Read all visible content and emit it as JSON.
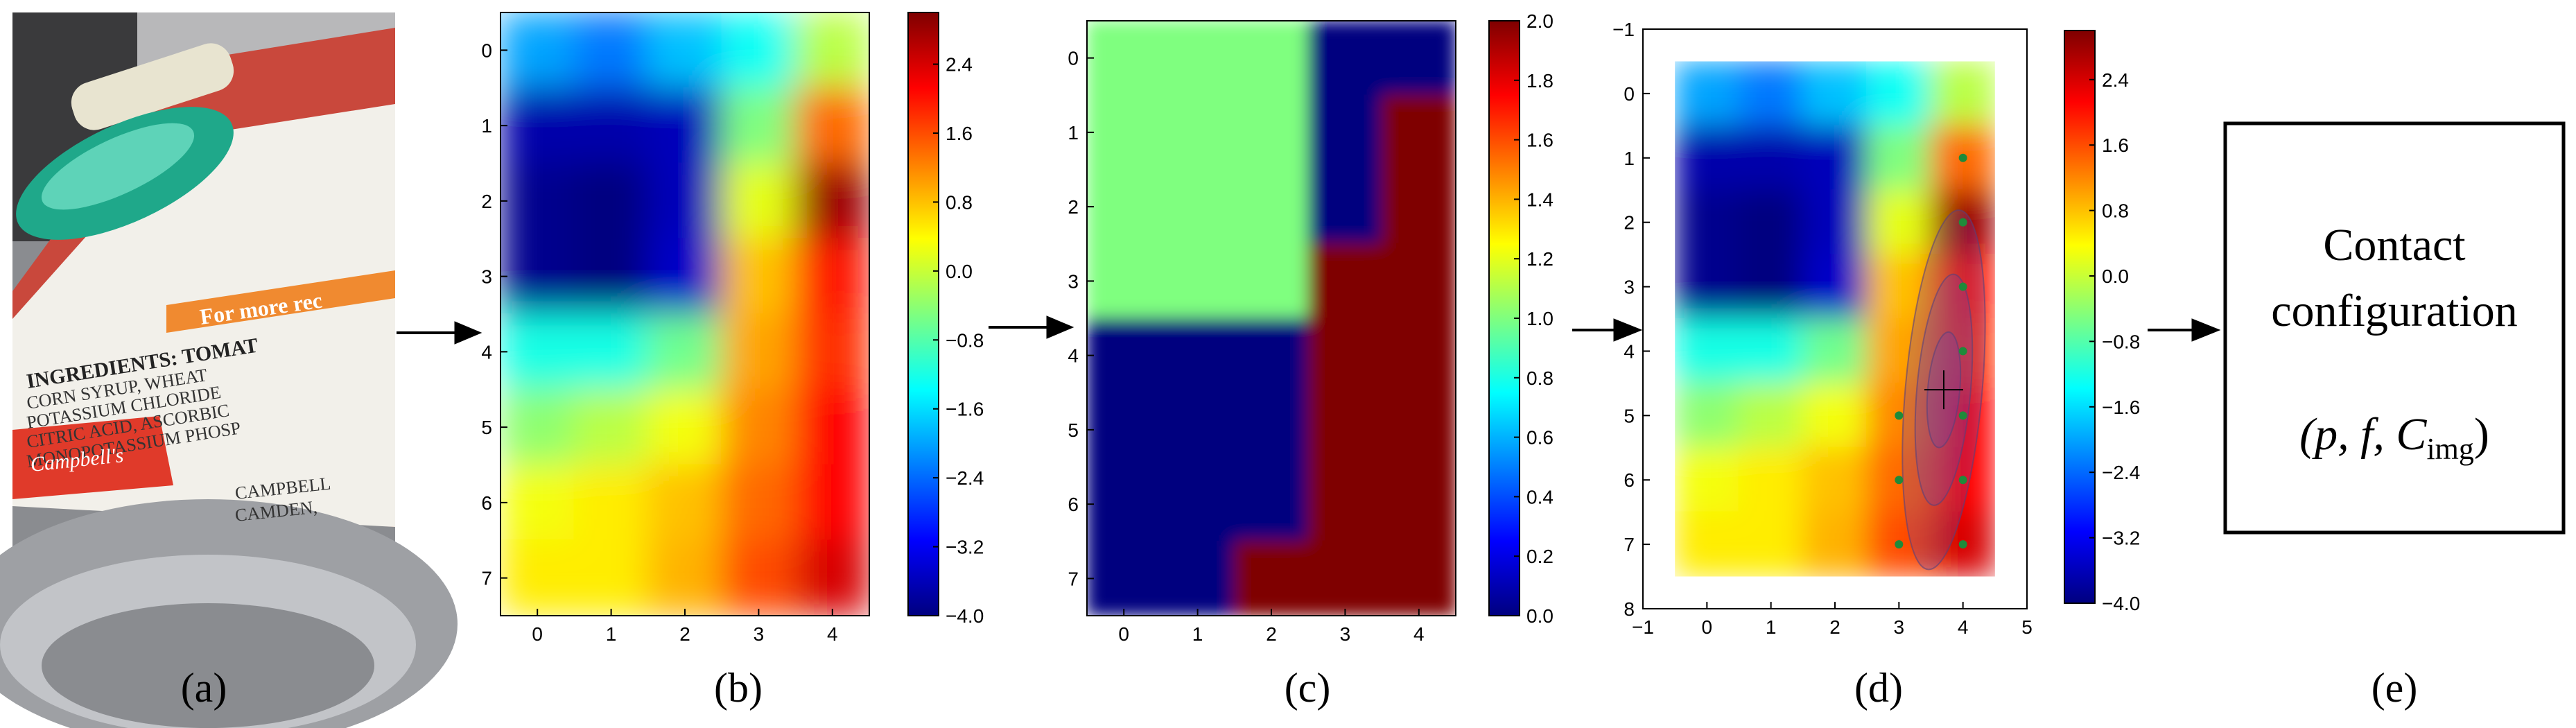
{
  "figure": {
    "panels": [
      {
        "id": "a",
        "label": "(a)",
        "content": "photo"
      },
      {
        "id": "b",
        "label": "(b)",
        "content": "heatmap"
      },
      {
        "id": "c",
        "label": "(c)",
        "content": "heatmap"
      },
      {
        "id": "d",
        "label": "(d)",
        "content": "heatmap"
      },
      {
        "id": "e",
        "label": "(e)",
        "content": "box"
      }
    ],
    "photo_text": {
      "for_more": "For more rec",
      "ingredients": "INGREDIENTS: TOMAT",
      "line1": "CORN SYRUP, WHEAT",
      "line2": "POTASSIUM CHLORIDE",
      "line3": "CITRIC ACID, ASCORBIC",
      "line4": "MONOPOTASSIUM PHOSP",
      "brand": "Campbell's",
      "addr1": "CAMPBELL",
      "addr2": "CAMDEN, "
    },
    "box": {
      "line1": "Contact",
      "line2": "configuration",
      "formula": "(p, f, C",
      "subscript": "img",
      "close": ")"
    },
    "colors": {
      "jet": [
        "#00007f",
        "#0000ff",
        "#007fff",
        "#00ffff",
        "#7fff7f",
        "#ffff00",
        "#ff7f00",
        "#ff0000",
        "#7f0000"
      ],
      "photo_bg": "#8a8c90",
      "label_red": "#e03a2a",
      "label_orange": "#f08a30",
      "cap_green": "#1fa88a",
      "ellipse": "#6a3fb0",
      "dot": "#1f8a3a"
    }
  },
  "chart_data": [
    {
      "type": "heatmap",
      "panel": "b",
      "xticks": [
        "0",
        "1",
        "2",
        "3",
        "4"
      ],
      "yticks": [
        "0",
        "1",
        "2",
        "3",
        "4",
        "5",
        "6",
        "7"
      ],
      "xlim": [
        -0.5,
        4.5
      ],
      "ylim": [
        7.5,
        -0.5
      ],
      "colorbar": {
        "min": -4.0,
        "max": 3.0,
        "ticks": [
          "2.4",
          "1.6",
          "0.8",
          "0.0",
          "−0.8",
          "−1.6",
          "−2.4",
          "−3.2",
          "−4.0"
        ]
      },
      "values": [
        [
          -2.0,
          -2.3,
          -1.8,
          -1.3,
          -0.1
        ],
        [
          -3.7,
          -3.7,
          -3.6,
          -0.5,
          1.4
        ],
        [
          -3.9,
          -4.0,
          -3.6,
          0.2,
          2.8
        ],
        [
          -3.9,
          -4.0,
          -3.5,
          0.8,
          2.0
        ],
        [
          -1.2,
          -1.2,
          -0.6,
          1.0,
          1.8
        ],
        [
          -0.4,
          -0.1,
          0.3,
          1.2,
          2.1
        ],
        [
          0.3,
          0.5,
          0.8,
          1.4,
          2.1
        ],
        [
          0.5,
          0.5,
          0.9,
          1.6,
          2.4
        ]
      ]
    },
    {
      "type": "heatmap",
      "panel": "c",
      "xticks": [
        "0",
        "1",
        "2",
        "3",
        "4"
      ],
      "yticks": [
        "0",
        "1",
        "2",
        "3",
        "4",
        "5",
        "6",
        "7"
      ],
      "xlim": [
        -0.5,
        4.5
      ],
      "ylim": [
        7.5,
        -0.5
      ],
      "colorbar": {
        "min": 0.0,
        "max": 2.0,
        "ticks": [
          "2.0",
          "1.8",
          "1.6",
          "1.4",
          "1.2",
          "1.0",
          "0.8",
          "0.6",
          "0.4",
          "0.2",
          "0.0"
        ]
      },
      "values": [
        [
          1,
          1,
          1,
          0,
          0
        ],
        [
          1,
          1,
          1,
          0,
          2
        ],
        [
          1,
          1,
          1,
          0,
          2
        ],
        [
          1,
          1,
          1,
          2,
          2
        ],
        [
          0,
          0,
          0,
          2,
          2
        ],
        [
          0,
          0,
          0,
          2,
          2
        ],
        [
          0,
          0,
          0,
          2,
          2
        ],
        [
          0,
          0,
          2,
          2,
          2
        ]
      ]
    },
    {
      "type": "heatmap",
      "panel": "d",
      "xticks": [
        "−1",
        "0",
        "1",
        "2",
        "3",
        "4",
        "5"
      ],
      "yticks": [
        "−1",
        "0",
        "1",
        "2",
        "3",
        "4",
        "5",
        "6",
        "7",
        "8"
      ],
      "xlim": [
        -1,
        5
      ],
      "ylim": [
        8,
        -1
      ],
      "colorbar": {
        "min": -4.0,
        "max": 3.0,
        "ticks": [
          "2.4",
          "1.6",
          "0.8",
          "0.0",
          "−0.8",
          "−1.6",
          "−2.4",
          "−3.2",
          "−4.0"
        ]
      },
      "values_ref": "b",
      "points": [
        [
          4,
          1
        ],
        [
          4,
          2
        ],
        [
          4,
          3
        ],
        [
          4,
          4
        ],
        [
          4,
          5
        ],
        [
          4,
          6
        ],
        [
          4,
          7
        ],
        [
          3,
          5
        ],
        [
          3,
          6
        ],
        [
          3,
          7
        ]
      ],
      "estimate": {
        "x": 3.7,
        "y": 4.6
      },
      "ellipses": [
        {
          "cx": 3.7,
          "cy": 4.6,
          "rx": 0.25,
          "ry": 0.9
        },
        {
          "cx": 3.7,
          "cy": 4.6,
          "rx": 0.42,
          "ry": 1.8
        },
        {
          "cx": 3.7,
          "cy": 4.6,
          "rx": 0.6,
          "ry": 2.8
        }
      ]
    }
  ]
}
